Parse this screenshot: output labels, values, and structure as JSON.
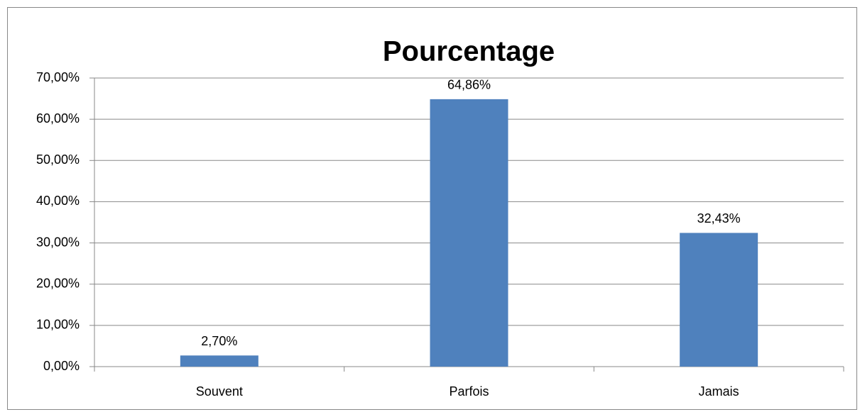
{
  "chart_data": {
    "type": "bar",
    "title": "Pourcentage",
    "categories": [
      "Souvent",
      "Parfois",
      "Jamais"
    ],
    "values": [
      2.7,
      64.86,
      32.43
    ],
    "value_labels": [
      "2,70%",
      "64,86%",
      "32,43%"
    ],
    "color": "#4f81bd",
    "ylim": [
      0,
      70
    ],
    "yticks": [
      {
        "value": 0,
        "label": "0,00%"
      },
      {
        "value": 10,
        "label": "10,00%"
      },
      {
        "value": 20,
        "label": "20,00%"
      },
      {
        "value": 30,
        "label": "30,00%"
      },
      {
        "value": 40,
        "label": "40,00%"
      },
      {
        "value": 50,
        "label": "50,00%"
      },
      {
        "value": 60,
        "label": "60,00%"
      },
      {
        "value": 70,
        "label": "70,00%"
      }
    ],
    "grid": true
  }
}
